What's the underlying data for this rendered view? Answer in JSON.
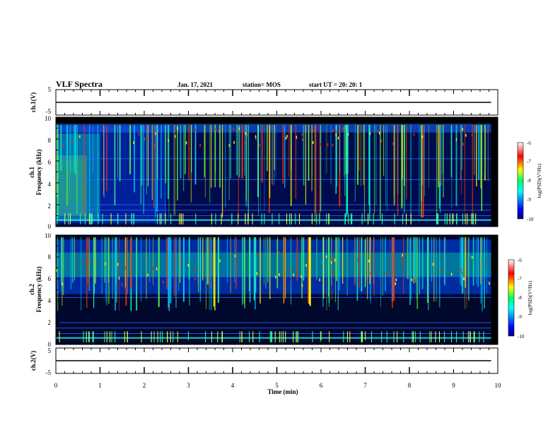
{
  "header": {
    "title": "VLF Spectra",
    "date": "Jan. 17, 2021",
    "station": "station= MOS",
    "start": "start  UT =  20: 20: 1"
  },
  "chart_data": [
    {
      "type": "line",
      "name_label": "ch.1(V)",
      "ylabel": "ch.1(V)",
      "xlim": [
        0,
        10
      ],
      "ylim": [
        -5,
        5
      ],
      "ytick_labels": [
        "5",
        "-5"
      ],
      "x": [
        0,
        9.85
      ],
      "values": [
        0,
        0
      ]
    },
    {
      "type": "heatmap",
      "ylabel_line1": "ch.1",
      "ylabel_line2": "Frequency (kHz)",
      "xlim": [
        0,
        10
      ],
      "ylim": [
        0,
        10
      ],
      "ytick_labels": [
        "0",
        "2",
        "4",
        "6",
        "8",
        "10"
      ],
      "colorbar": {
        "label": "log(PSD)(V²/Hz)",
        "range": [
          -10,
          -6
        ],
        "tick_labels": [
          "-6",
          "-7",
          "-8",
          "-9",
          "-10"
        ]
      }
    },
    {
      "type": "heatmap",
      "ylabel_line1": "ch.2",
      "ylabel_line2": "Frequency (kHz)",
      "xlim": [
        0,
        10
      ],
      "ylim": [
        0,
        10
      ],
      "ytick_labels": [
        "0",
        "2",
        "4",
        "6",
        "8",
        "10"
      ],
      "colorbar": {
        "label": "log(PSD)(V²/Hz)",
        "range": [
          -10,
          -6
        ],
        "tick_labels": [
          "-6",
          "-7",
          "-8",
          "-9",
          "-10"
        ]
      }
    },
    {
      "type": "line",
      "ylabel": "ch.2(V)",
      "xlim": [
        0,
        10
      ],
      "ylim": [
        -5,
        5
      ],
      "ytick_labels": [
        "5",
        "-5"
      ],
      "x": [
        0,
        9.85
      ],
      "values": [
        0,
        0
      ]
    }
  ],
  "xaxis": {
    "label": "Time (min)",
    "tick_labels": [
      "0",
      "1",
      "2",
      "3",
      "4",
      "5",
      "6",
      "7",
      "8",
      "9",
      "10"
    ]
  }
}
